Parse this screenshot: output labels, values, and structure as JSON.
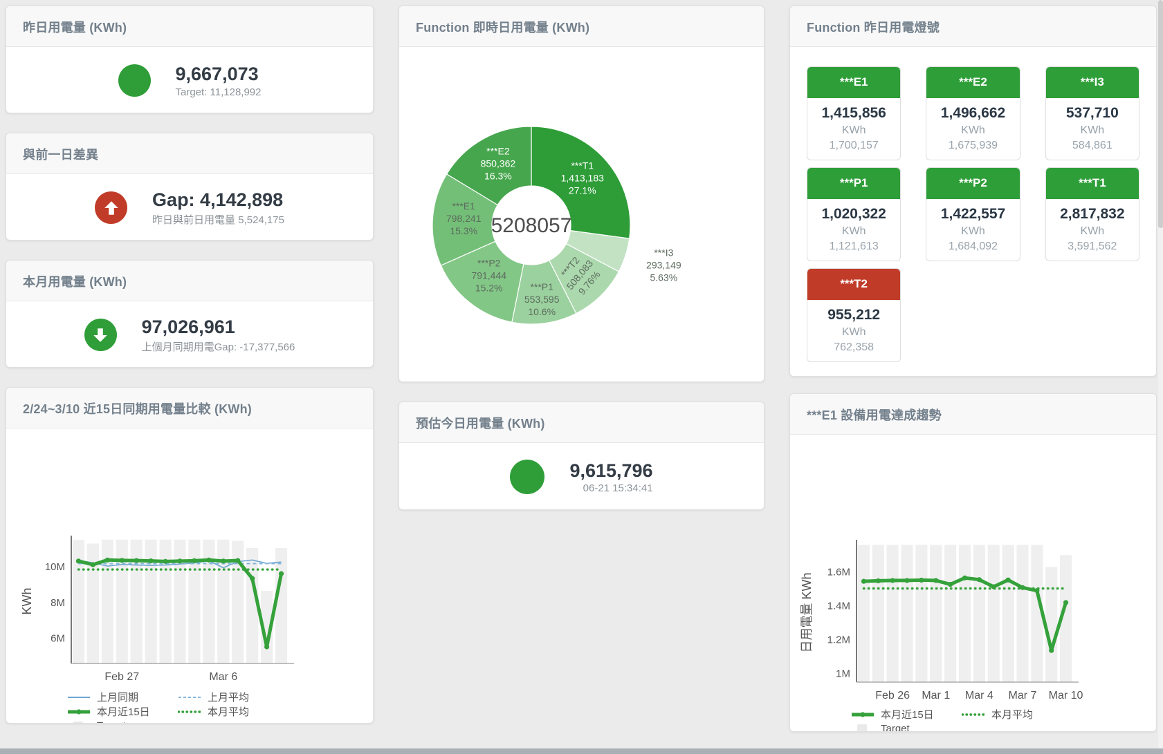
{
  "colors": {
    "green": "#2f9e38",
    "red": "#c13c28",
    "tile_green": "#2e9e38",
    "tile_red": "#c13c28",
    "bar_fill": "#efefef",
    "line_blue": "#6fa7d3",
    "line_blue_light": "#85b6dd",
    "line_green": "#35a13b"
  },
  "cards": {
    "yesterday": {
      "title": "昨日用電量 (KWh)",
      "value": "9,667,073",
      "subtitle": "Target: 11,128,992"
    },
    "gap_prev_day": {
      "title": "與前一日差異",
      "value": "Gap: 4,142,898",
      "subtitle": "昨日與前日用電量 5,524,175"
    },
    "month": {
      "title": "本月用電量 (KWh)",
      "value": "97,026,961",
      "subtitle": "上個月同期用電Gap: -17,377,566"
    },
    "realtime_donut": {
      "title": "Function 即時日用電量 (KWh)"
    },
    "estimate_today": {
      "title": "預估今日用電量 (KWh)",
      "value": "9,615,796",
      "subtitle": "06-21 15:34:41"
    },
    "lights": {
      "title": "Function 昨日用電燈號"
    },
    "compare15": {
      "title": "2/24~3/10 近15日同期用電量比較 (KWh)"
    },
    "e1_trend": {
      "title": "***E1 設備用電達成趨勢"
    }
  },
  "lights_tiles": [
    {
      "name": "***E1",
      "value": "1,415,856",
      "unit": "KWh",
      "target": "1,700,157",
      "status": "green"
    },
    {
      "name": "***E2",
      "value": "1,496,662",
      "unit": "KWh",
      "target": "1,675,939",
      "status": "green"
    },
    {
      "name": "***I3",
      "value": "537,710",
      "unit": "KWh",
      "target": "584,861",
      "status": "green"
    },
    {
      "name": "***P1",
      "value": "1,020,322",
      "unit": "KWh",
      "target": "1,121,613",
      "status": "green"
    },
    {
      "name": "***P2",
      "value": "1,422,557",
      "unit": "KWh",
      "target": "1,684,092",
      "status": "green"
    },
    {
      "name": "***T1",
      "value": "2,817,832",
      "unit": "KWh",
      "target": "3,591,562",
      "status": "green"
    },
    {
      "name": "***T2",
      "value": "955,212",
      "unit": "KWh",
      "target": "762,358",
      "status": "red"
    }
  ],
  "chart_data": [
    {
      "type": "pie",
      "name": "realtime-donut",
      "title": "Function 即時日用電量 (KWh)",
      "center_total": "5208057",
      "segments": [
        {
          "name": "***T1",
          "value": 1413183,
          "pct": "27.1%",
          "color": "#2e9d38",
          "text_color": "#ffffff",
          "label": "inside"
        },
        {
          "name": "***I3",
          "value": 293149,
          "pct": "5.63%",
          "color": "#c3e2c4",
          "text_color": "#5c6b5e",
          "label": "outside"
        },
        {
          "name": "***T2",
          "value": 508083,
          "pct": "9.76%",
          "color": "#abd8ad",
          "text_color": "#5c6b5e",
          "label": "inside",
          "rotate": -50,
          "label_radius": 104
        },
        {
          "name": "***P1",
          "value": 553595,
          "pct": "10.6%",
          "color": "#9bd19e",
          "text_color": "#5c6b5e",
          "label": "inside",
          "label_radius": 112
        },
        {
          "name": "***P2",
          "value": 791444,
          "pct": "15.2%",
          "color": "#83c787",
          "text_color": "#5c6b5e",
          "label": "inside"
        },
        {
          "name": "***E1",
          "value": 798241,
          "pct": "15.3%",
          "color": "#74bf78",
          "text_color": "#5c6b5e",
          "label": "inside"
        },
        {
          "name": "***E2",
          "value": 850362,
          "pct": "16.3%",
          "color": "#46a64d",
          "text_color": "#ffffff",
          "label": "inside"
        }
      ]
    },
    {
      "type": "line",
      "name": "compare15",
      "title": "2/24~3/10 近15日同期用電量比較 (KWh)",
      "ylabel": "KWh",
      "n": 15,
      "ylim": [
        4600000,
        11550000
      ],
      "y_ticks": [
        {
          "value": 6000000,
          "label": "6M"
        },
        {
          "value": 8000000,
          "label": "8M"
        },
        {
          "value": 10000000,
          "label": "10M"
        }
      ],
      "x_ticks": [
        {
          "index": 3,
          "label": "Feb 27"
        },
        {
          "index": 10,
          "label": "Mar 6"
        }
      ],
      "series": [
        {
          "name": "Target",
          "style": "bar",
          "color": "#efefef",
          "values": [
            11500000,
            11300000,
            11520000,
            11520000,
            11520000,
            11520000,
            11520000,
            11520000,
            11520000,
            11520000,
            11520000,
            11450000,
            11050000,
            8650000,
            11050000
          ]
        },
        {
          "name": "上月同期",
          "style": "line",
          "color": "#6fa7d3",
          "values": [
            10360000,
            10220000,
            10040000,
            10130000,
            10100000,
            10080000,
            10100000,
            10150000,
            10220000,
            10330000,
            9950000,
            10290000,
            10380000,
            10190000,
            10270000
          ]
        },
        {
          "name": "上月平均",
          "style": "dashed",
          "color": "#85b6dd",
          "values": 10180000
        },
        {
          "name": "本月近15日",
          "style": "thick",
          "color": "#35a13b",
          "values": [
            10320000,
            10120000,
            10380000,
            10360000,
            10350000,
            10330000,
            10300000,
            10320000,
            10340000,
            10380000,
            10320000,
            10350000,
            9350000,
            5530000,
            9620000
          ]
        },
        {
          "name": "本月平均",
          "style": "dotted",
          "color": "#35a13b",
          "values": 9850000
        }
      ],
      "legend_rows": [
        [
          {
            "label": "上月同期",
            "style": "line",
            "color": "#6fa7d3"
          },
          {
            "label": "上月平均",
            "style": "dashed",
            "color": "#85b6dd"
          }
        ],
        [
          {
            "label": "本月近15日",
            "style": "thick",
            "color": "#35a13b"
          },
          {
            "label": "本月平均",
            "style": "dotted",
            "color": "#35a13b"
          }
        ],
        [
          {
            "label": "Target",
            "style": "bar",
            "color": "#e9e9e9"
          }
        ]
      ]
    },
    {
      "type": "line",
      "name": "e1-trend",
      "title": "***E1 設備用電達成趨勢",
      "ylabel": "日用電量 KWh",
      "n": 15,
      "ylim": [
        950000,
        1770000
      ],
      "y_ticks": [
        {
          "value": 1000000,
          "label": "1M"
        },
        {
          "value": 1200000,
          "label": "1.2M"
        },
        {
          "value": 1400000,
          "label": "1.4M"
        },
        {
          "value": 1600000,
          "label": "1.6M"
        }
      ],
      "x_ticks": [
        {
          "index": 2,
          "label": "Feb 26"
        },
        {
          "index": 5,
          "label": "Mar 1"
        },
        {
          "index": 8,
          "label": "Mar 4"
        },
        {
          "index": 11,
          "label": "Mar 7"
        },
        {
          "index": 14,
          "label": "Mar 10"
        }
      ],
      "series": [
        {
          "name": "Target",
          "style": "bar",
          "color": "#efefef",
          "values": [
            1760000,
            1760000,
            1760000,
            1760000,
            1760000,
            1760000,
            1760000,
            1760000,
            1760000,
            1760000,
            1760000,
            1760000,
            1760000,
            1630000,
            1700000
          ]
        },
        {
          "name": "本月近15日",
          "style": "thick",
          "color": "#35a13b",
          "values": [
            1545000,
            1548000,
            1550000,
            1550000,
            1552000,
            1550000,
            1527000,
            1565000,
            1555000,
            1513000,
            1553000,
            1508000,
            1490000,
            1137000,
            1420000
          ]
        },
        {
          "name": "本月平均",
          "style": "dotted",
          "color": "#35a13b",
          "values": 1503000
        }
      ],
      "legend_rows": [
        [
          {
            "label": "本月近15日",
            "style": "thick",
            "color": "#35a13b"
          },
          {
            "label": "本月平均",
            "style": "dotted",
            "color": "#35a13b"
          }
        ],
        [
          {
            "label": "Target",
            "style": "bar",
            "color": "#e9e9e9"
          }
        ]
      ]
    }
  ]
}
